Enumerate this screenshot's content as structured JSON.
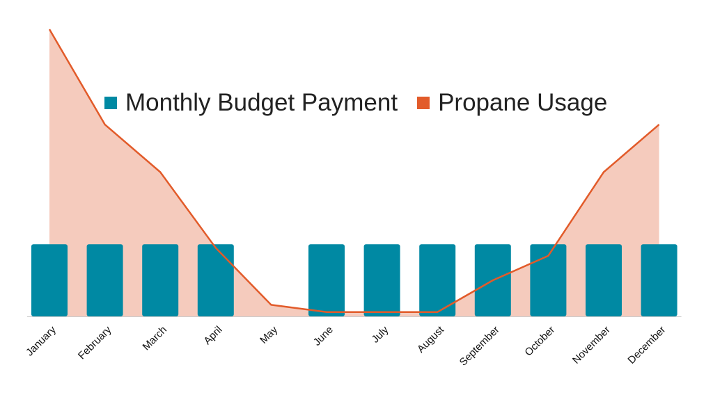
{
  "chart_data": {
    "type": "bar+area-line",
    "title": "",
    "xlabel": "",
    "ylabel": "",
    "categories": [
      "January",
      "February",
      "March",
      "April",
      "May",
      "June",
      "July",
      "August",
      "September",
      "October",
      "November",
      "December"
    ],
    "series": [
      {
        "name": "Monthly Budget Payment",
        "type": "bar",
        "color": "#0089A3",
        "values": [
          100,
          100,
          100,
          100,
          null,
          100,
          100,
          100,
          100,
          100,
          100,
          100
        ]
      },
      {
        "name": "Propane Usage",
        "type": "area-line",
        "color": "#E25B2A",
        "fill": "#F5CBBD",
        "values": [
          398,
          266,
          200,
          95,
          16,
          6,
          6,
          6,
          50,
          84,
          200,
          266
        ]
      }
    ],
    "ylim": [
      0,
      400
    ],
    "grid": false,
    "legend_position": "top-center"
  }
}
